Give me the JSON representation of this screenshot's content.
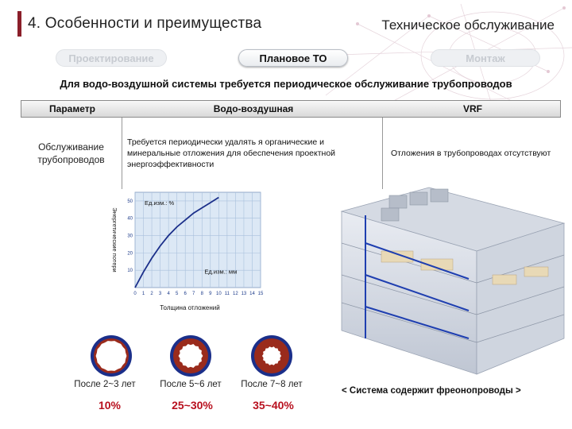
{
  "header": {
    "title": "4. Особенности и преимущества",
    "section_title": "Техническое обслуживание"
  },
  "tabs": [
    {
      "label": "Проектирование",
      "state": "inactive"
    },
    {
      "label": "Плановое ТО",
      "state": "active"
    },
    {
      "label": "Монтаж",
      "state": "inactive"
    }
  ],
  "headline": "Для водо-воздушной системы требуется периодическое обслуживание трубопроводов",
  "table": {
    "headers": [
      "Параметр",
      "Водо-воздушная",
      "VRF"
    ],
    "row": {
      "param": "Обслуживание трубопроводов",
      "water_air": "Требуется периодически удалять я органические и минеральные отложения для обеспечения проектной энергоэффективности",
      "vrf": "Отложения в трубопроводах отсутствуют"
    }
  },
  "chart_data": {
    "type": "line",
    "ylabel": "Энергетические потери",
    "xlabel": "Толщина отложений",
    "y_unit_label": "Ед.изм.: %",
    "x_unit_label": "Ед.изм.: мм",
    "x_ticks": [
      0,
      1,
      2,
      3,
      4,
      5,
      6,
      7,
      8,
      9,
      10,
      11,
      12,
      13,
      14,
      15
    ],
    "y_ticks": [
      10,
      20,
      30,
      40,
      50
    ],
    "xlim": [
      0,
      15
    ],
    "ylim": [
      0,
      55
    ],
    "grid": true,
    "series": [
      {
        "x": [
          0,
          1,
          2,
          3,
          4,
          5,
          6,
          7,
          8,
          9,
          10
        ],
        "y": [
          0,
          9,
          17,
          24,
          30,
          35,
          39,
          43,
          46,
          49,
          52
        ]
      }
    ],
    "colors": {
      "line": "#1b2f8a",
      "plot_bg": "#dce8f5",
      "grid": "#a9c0dc"
    }
  },
  "pipes": [
    {
      "label": "После 2~3 лет",
      "loss": "10%",
      "deposit": 0.12
    },
    {
      "label": "После 5~6 лет",
      "loss": "25~30%",
      "deposit": 0.3
    },
    {
      "label": "После 7~8 лет",
      "loss": "35~40%",
      "deposit": 0.45
    }
  ],
  "system_caption": "< Система содержит фреонопроводы >",
  "colors": {
    "accent": "#8b1f2a",
    "percent": "#b8101e",
    "pipe_ring": "#1b2f8a",
    "deposit": "#9a2b1c"
  }
}
